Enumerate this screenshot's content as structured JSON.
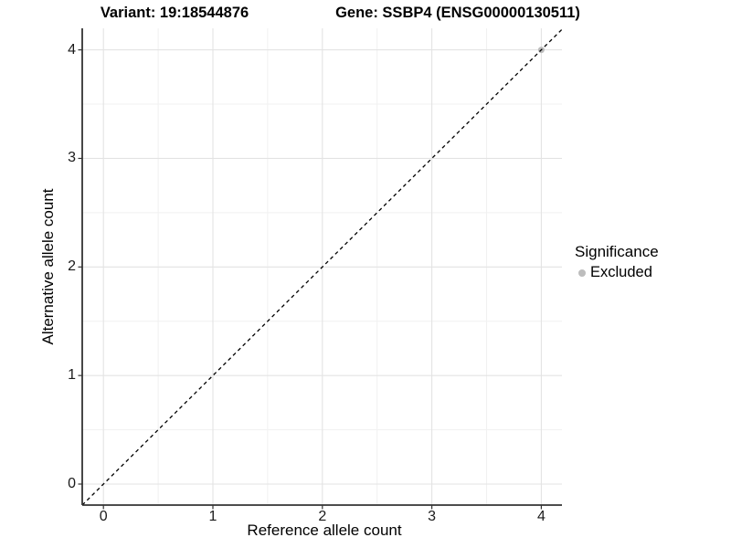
{
  "header": {
    "variant_title": "Variant: 19:18544876",
    "gene_title": "Gene: SSBP4 (ENSG00000130511)"
  },
  "legend": {
    "title": "Significance",
    "items": [
      {
        "label": "Excluded",
        "color": "#bdbdbd"
      }
    ]
  },
  "axes": {
    "x": {
      "label": "Reference allele count",
      "tick_labels": [
        "0",
        "1",
        "2",
        "3",
        "4"
      ],
      "tick_values": [
        0,
        1,
        2,
        3,
        4
      ],
      "minor_tick_values": [
        0.5,
        1.5,
        2.5,
        3.5
      ]
    },
    "y": {
      "label": "Alternative allele count",
      "tick_labels": [
        "0",
        "1",
        "2",
        "3",
        "4"
      ],
      "tick_values": [
        0,
        1,
        2,
        3,
        4
      ],
      "minor_tick_values": [
        0.5,
        1.5,
        2.5,
        3.5
      ]
    }
  },
  "chart_data": {
    "type": "scatter",
    "title": "Variant: 19:18544876 | Gene: SSBP4 (ENSG00000130511)",
    "xlabel": "Reference allele count",
    "ylabel": "Alternative allele count",
    "xlim": [
      -0.2,
      4.2
    ],
    "ylim": [
      -0.2,
      4.2
    ],
    "grid": "major+minor",
    "legend_position": "right",
    "series": [
      {
        "name": "Excluded",
        "color": "#bdbdbd",
        "point_radius": 3.5,
        "points": [
          {
            "x": 4,
            "y": 4
          }
        ]
      }
    ],
    "reference_line": {
      "type": "identity",
      "slope": 1,
      "intercept": 0,
      "linetype": "dashed",
      "color": "#000000"
    }
  },
  "colors": {
    "background": "#ffffff",
    "grid_major": "#e3e3e3",
    "grid_minor": "#f1f1f1",
    "axis_line": "#333333",
    "tick_mark": "#333333",
    "text": "#000000",
    "point": "#bdbdbd",
    "reference_line": "#000000"
  }
}
